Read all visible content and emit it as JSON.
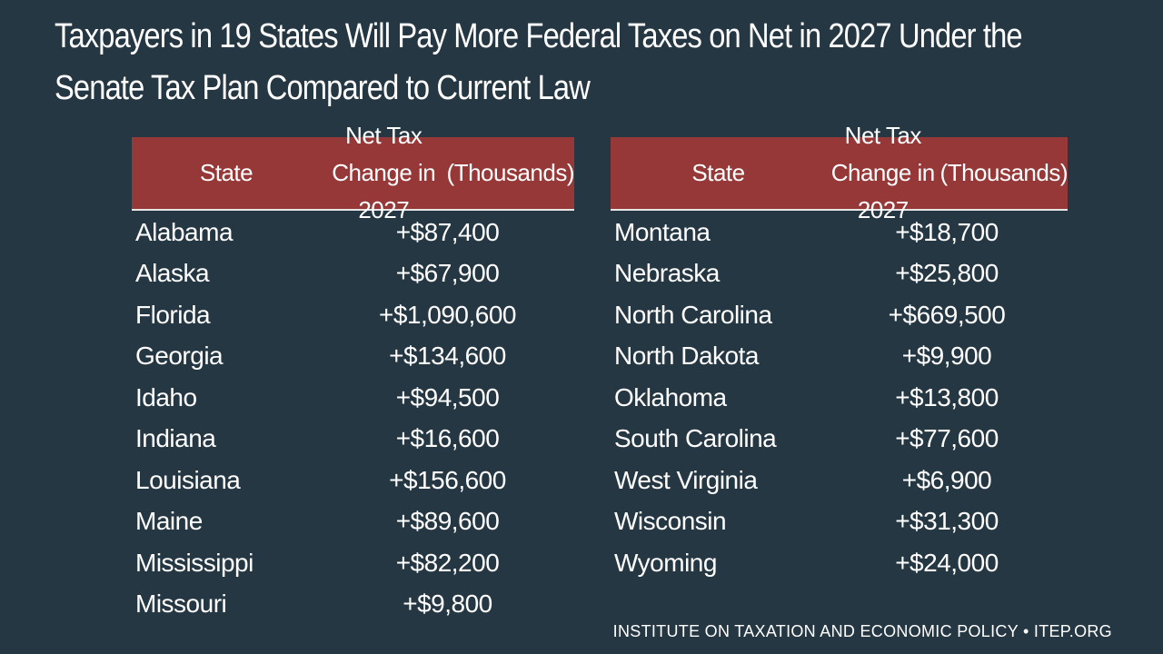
{
  "chart_data": {
    "type": "table",
    "title": "Taxpayers in 19 States Will Pay More Federal Taxes on Net in 2027 Under the Senate Tax Plan Compared to Current Law",
    "title_lines": [
      "Taxpayers in 19 States Will Pay More Federal Taxes on Net in 2027 Under the",
      "Senate Tax Plan Compared to Current Law"
    ],
    "columns": {
      "state": "State",
      "value_line1": "Net Tax Change in 2027",
      "value_line2": "(Thousands)"
    },
    "colors": {
      "background": "#253743",
      "header": "#973838",
      "text": "#ffffff"
    },
    "left_table": [
      {
        "state": "Alabama",
        "value": "+$87,400"
      },
      {
        "state": "Alaska",
        "value": "+$67,900"
      },
      {
        "state": "Florida",
        "value": "+$1,090,600"
      },
      {
        "state": "Georgia",
        "value": "+$134,600"
      },
      {
        "state": "Idaho",
        "value": "+$94,500"
      },
      {
        "state": "Indiana",
        "value": "+$16,600"
      },
      {
        "state": "Louisiana",
        "value": "+$156,600"
      },
      {
        "state": "Maine",
        "value": "+$89,600"
      },
      {
        "state": "Mississippi",
        "value": "+$82,200"
      },
      {
        "state": "Missouri",
        "value": "+$9,800"
      }
    ],
    "right_table": [
      {
        "state": "Montana",
        "value": "+$18,700"
      },
      {
        "state": "Nebraska",
        "value": "+$25,800"
      },
      {
        "state": "North Carolina",
        "value": "+$669,500"
      },
      {
        "state": "North Dakota",
        "value": "+$9,900"
      },
      {
        "state": "Oklahoma",
        "value": "+$13,800"
      },
      {
        "state": "South Carolina",
        "value": "+$77,600"
      },
      {
        "state": "West Virginia",
        "value": "+$6,900"
      },
      {
        "state": "Wisconsin",
        "value": "+$31,300"
      },
      {
        "state": "Wyoming",
        "value": "+$24,000"
      }
    ]
  },
  "footer": "INSTITUTE ON TAXATION AND ECONOMIC POLICY • ITEP.ORG"
}
